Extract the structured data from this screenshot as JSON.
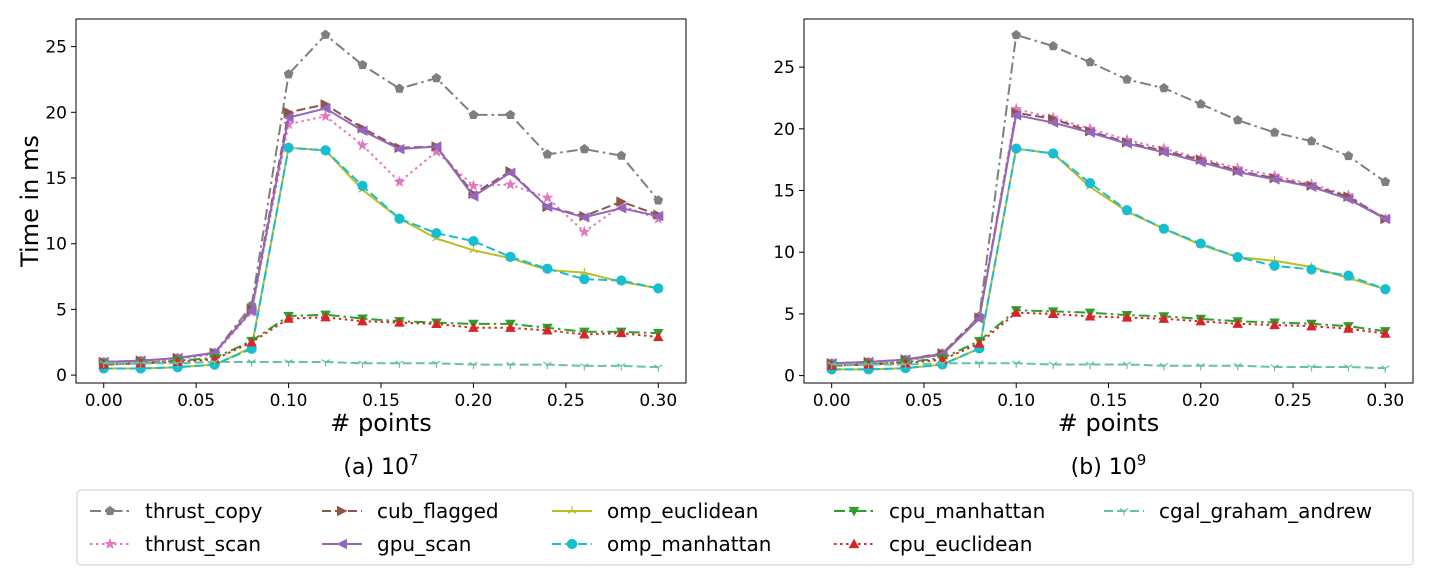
{
  "chart_data": [
    {
      "type": "line",
      "caption": "(a) 10",
      "caption_exp": "7",
      "xlabel": "# points",
      "ylabel": "Time in ms",
      "xlim": [
        -0.015,
        0.315
      ],
      "ylim": [
        -0.6,
        27.1
      ],
      "xticks": [
        0.0,
        0.05,
        0.1,
        0.15,
        0.2,
        0.25,
        0.3
      ],
      "xtick_labels": [
        "0.00",
        "0.05",
        "0.10",
        "0.15",
        "0.20",
        "0.25",
        "0.30"
      ],
      "yticks": [
        0,
        5,
        10,
        15,
        20,
        25
      ],
      "ytick_labels": [
        "0",
        "5",
        "10",
        "15",
        "20",
        "25"
      ],
      "grid": false,
      "x": [
        0.0,
        0.02,
        0.04,
        0.06,
        0.08,
        0.1,
        0.12,
        0.14,
        0.16,
        0.18,
        0.2,
        0.22,
        0.24,
        0.26,
        0.28,
        0.3
      ],
      "series": [
        {
          "name": "thrust_copy",
          "values": [
            1.0,
            1.1,
            1.3,
            1.7,
            5.3,
            22.9,
            25.9,
            23.6,
            21.8,
            22.6,
            19.8,
            19.8,
            16.8,
            17.2,
            16.7,
            13.3
          ]
        },
        {
          "name": "thrust_scan",
          "values": [
            0.9,
            1.0,
            1.2,
            1.6,
            4.8,
            19.1,
            19.7,
            17.5,
            14.7,
            17.0,
            14.4,
            14.5,
            13.5,
            10.9,
            12.9,
            11.9
          ]
        },
        {
          "name": "cub_flagged",
          "values": [
            1.0,
            1.1,
            1.3,
            1.7,
            5.0,
            20.0,
            20.6,
            18.8,
            17.3,
            17.4,
            13.8,
            15.5,
            12.8,
            12.1,
            13.2,
            12.2
          ]
        },
        {
          "name": "gpu_scan",
          "values": [
            1.0,
            1.1,
            1.3,
            1.7,
            4.9,
            19.6,
            20.3,
            18.6,
            17.2,
            17.4,
            13.6,
            15.4,
            12.8,
            12.0,
            12.7,
            12.1
          ]
        },
        {
          "name": "omp_euclidean",
          "values": [
            0.5,
            0.5,
            0.6,
            0.8,
            2.1,
            17.3,
            17.1,
            14.1,
            11.9,
            10.4,
            9.5,
            8.9,
            8.0,
            7.8,
            7.1,
            6.6
          ]
        },
        {
          "name": "omp_manhattan",
          "values": [
            0.5,
            0.5,
            0.6,
            0.8,
            2.0,
            17.3,
            17.1,
            14.4,
            11.9,
            10.8,
            10.2,
            9.0,
            8.1,
            7.3,
            7.2,
            6.6
          ]
        },
        {
          "name": "cpu_manhattan",
          "values": [
            0.8,
            0.9,
            1.1,
            1.3,
            2.6,
            4.5,
            4.6,
            4.3,
            4.1,
            4.0,
            3.9,
            3.9,
            3.6,
            3.3,
            3.3,
            3.2
          ]
        },
        {
          "name": "cpu_euclidean",
          "values": [
            0.8,
            0.9,
            1.0,
            1.2,
            2.5,
            4.3,
            4.4,
            4.1,
            4.0,
            3.9,
            3.6,
            3.6,
            3.4,
            3.1,
            3.2,
            2.9
          ]
        },
        {
          "name": "cgal_graham_andrew",
          "values": [
            0.9,
            0.9,
            0.9,
            1.0,
            1.0,
            1.0,
            1.0,
            0.9,
            0.9,
            0.9,
            0.8,
            0.8,
            0.8,
            0.7,
            0.7,
            0.6
          ]
        }
      ]
    },
    {
      "type": "line",
      "caption": "(b) 10",
      "caption_exp": "9",
      "xlabel": "# points",
      "ylabel": "",
      "xlim": [
        -0.015,
        0.315
      ],
      "ylim": [
        -0.6,
        28.9
      ],
      "xticks": [
        0.0,
        0.05,
        0.1,
        0.15,
        0.2,
        0.25,
        0.3
      ],
      "xtick_labels": [
        "0.00",
        "0.05",
        "0.10",
        "0.15",
        "0.20",
        "0.25",
        "0.30"
      ],
      "yticks": [
        0,
        5,
        10,
        15,
        20,
        25
      ],
      "ytick_labels": [
        "0",
        "5",
        "10",
        "15",
        "20",
        "25"
      ],
      "grid": false,
      "x": [
        0.0,
        0.02,
        0.04,
        0.06,
        0.08,
        0.1,
        0.12,
        0.14,
        0.16,
        0.18,
        0.2,
        0.22,
        0.24,
        0.26,
        0.28,
        0.3
      ],
      "series": [
        {
          "name": "thrust_copy",
          "values": [
            1.0,
            1.1,
            1.3,
            1.8,
            4.8,
            27.6,
            26.7,
            25.4,
            24.0,
            23.3,
            22.0,
            20.7,
            19.7,
            19.0,
            17.8,
            15.7
          ]
        },
        {
          "name": "thrust_scan",
          "values": [
            0.9,
            1.0,
            1.2,
            1.7,
            4.7,
            21.6,
            20.9,
            20.0,
            19.1,
            18.4,
            17.6,
            16.8,
            16.2,
            15.5,
            14.6,
            12.7
          ]
        },
        {
          "name": "cub_flagged",
          "values": [
            1.0,
            1.1,
            1.3,
            1.8,
            4.7,
            21.3,
            20.8,
            19.8,
            18.9,
            18.2,
            17.5,
            16.6,
            16.0,
            15.4,
            14.5,
            12.7
          ]
        },
        {
          "name": "gpu_scan",
          "values": [
            1.0,
            1.1,
            1.3,
            1.7,
            4.6,
            21.1,
            20.5,
            19.7,
            18.8,
            18.1,
            17.3,
            16.5,
            15.9,
            15.3,
            14.3,
            12.7
          ]
        },
        {
          "name": "omp_euclidean",
          "values": [
            0.5,
            0.5,
            0.6,
            0.9,
            2.2,
            18.4,
            18.0,
            15.3,
            13.3,
            11.9,
            10.6,
            9.6,
            9.3,
            8.8,
            7.9,
            7.0
          ]
        },
        {
          "name": "omp_manhattan",
          "values": [
            0.5,
            0.5,
            0.6,
            0.9,
            2.2,
            18.4,
            18.0,
            15.6,
            13.4,
            11.9,
            10.7,
            9.6,
            8.9,
            8.6,
            8.1,
            7.0
          ]
        },
        {
          "name": "cpu_manhattan",
          "values": [
            0.8,
            0.9,
            1.1,
            1.4,
            2.8,
            5.3,
            5.2,
            5.1,
            4.9,
            4.8,
            4.6,
            4.4,
            4.3,
            4.2,
            4.0,
            3.6
          ]
        },
        {
          "name": "cpu_euclidean",
          "values": [
            0.8,
            0.9,
            1.0,
            1.3,
            2.6,
            5.1,
            5.0,
            4.8,
            4.7,
            4.6,
            4.4,
            4.2,
            4.1,
            4.0,
            3.8,
            3.4
          ]
        },
        {
          "name": "cgal_graham_andrew",
          "values": [
            0.9,
            0.9,
            0.9,
            1.0,
            1.0,
            1.0,
            0.9,
            0.9,
            0.9,
            0.8,
            0.8,
            0.8,
            0.7,
            0.7,
            0.7,
            0.6
          ]
        }
      ]
    }
  ],
  "legend": {
    "placement": "bottom",
    "entries": [
      {
        "name": "thrust_copy",
        "color": "#7f7f7f",
        "dash": "dashdot",
        "marker": "pentagon"
      },
      {
        "name": "thrust_scan",
        "color": "#e377c2",
        "dash": "dotted",
        "marker": "star"
      },
      {
        "name": "cub_flagged",
        "color": "#8c564b",
        "dash": "dashed",
        "marker": "triangle-right"
      },
      {
        "name": "gpu_scan",
        "color": "#9467bd",
        "dash": "solid",
        "marker": "triangle-left"
      },
      {
        "name": "omp_euclidean",
        "color": "#bcbd22",
        "dash": "solid",
        "marker": "tri-up"
      },
      {
        "name": "omp_manhattan",
        "color": "#17becf",
        "dash": "dashed",
        "marker": "circle"
      },
      {
        "name": "cpu_manhattan",
        "color": "#2ca02c",
        "dash": "dashdot",
        "marker": "triangle-down"
      },
      {
        "name": "cpu_euclidean",
        "color": "#d62728",
        "dash": "dotted",
        "marker": "triangle-up"
      },
      {
        "name": "cgal_graham_andrew",
        "color": "#66c2a5",
        "dash": "dashed",
        "marker": "tri-down"
      }
    ]
  }
}
